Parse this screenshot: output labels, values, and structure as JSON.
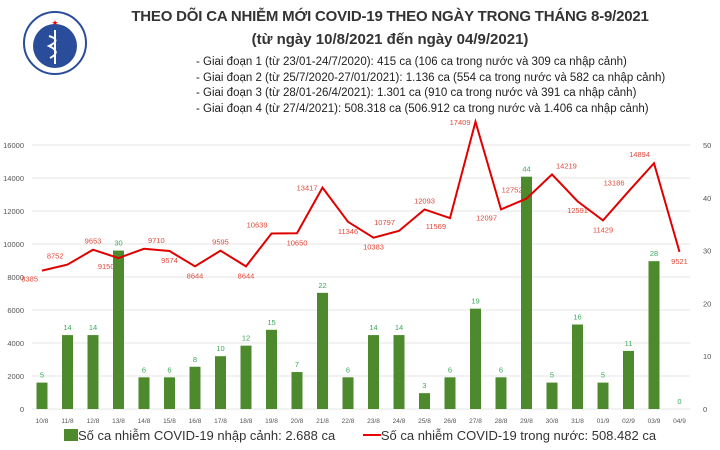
{
  "header": {
    "title": "THEO DÕI CA NHIỄM MỚI COVID-19 THEO NGÀY TRONG THÁNG 8-9/2021",
    "subtitle": "(từ ngày 10/8/2021 đến ngày 04/9/2021)",
    "notes": [
      "- Giai đoạn 1 (từ 23/01-24/7/2020): 415 ca (106 ca trong nước và 309 ca nhập cảnh)",
      "- Giai đoạn 2 (từ 25/7/2020-27/01/2021): 1.136 ca (554 ca trong nước và 582 ca nhập cảnh)",
      "- Giai đoạn 3 (từ 28/01-26/4/2021): 1.301 ca (910 ca trong nước và 391 ca nhập cảnh)",
      "- Giai đoạn 4 (từ 27/4/2021): 508.318 ca (506.912 ca trong nước và 1.406 ca nhập cảnh)"
    ],
    "logo_text": "BỘ Y TẾ · MINISTRY OF HEALTH"
  },
  "chart_data": {
    "type": "bar+line",
    "categories": [
      "10/8",
      "11/8",
      "12/8",
      "13/8",
      "14/8",
      "15/8",
      "16/8",
      "17/8",
      "18/8",
      "19/8",
      "20/8",
      "21/8",
      "22/8",
      "23/8",
      "24/8",
      "25/8",
      "26/8",
      "27/8",
      "28/8",
      "29/8",
      "30/8",
      "31/8",
      "01/9",
      "02/9",
      "03/9",
      "04/9"
    ],
    "series": [
      {
        "name": "Số ca nhiễm COVID-19 nhập cảnh: 2.688 ca",
        "type": "bar",
        "axis": "right",
        "color": "#4d8a2e",
        "label_color": "#3daa5a",
        "values": [
          5,
          14,
          14,
          30,
          6,
          6,
          8,
          10,
          12,
          15,
          7,
          22,
          6,
          14,
          14,
          3,
          6,
          19,
          6,
          44,
          5,
          16,
          5,
          11,
          28,
          0
        ]
      },
      {
        "name": "Số ca nhiễm COVID-19 trong nước: 508.482 ca",
        "type": "line",
        "axis": "left",
        "color": "#e00000",
        "label_color": "#e04a3a",
        "values": [
          8385,
          8752,
          9653,
          9150,
          9710,
          9574,
          8644,
          9595,
          8644,
          10639,
          10650,
          13417,
          11346,
          10383,
          10797,
          12093,
          11569,
          17409,
          12097,
          12752,
          14219,
          12591,
          11429,
          13186,
          14894,
          9521
        ]
      }
    ],
    "y_left": {
      "min": 0,
      "max": 16000,
      "ticks": [
        0,
        2000,
        4000,
        6000,
        8000,
        10000,
        12000,
        14000,
        16000
      ]
    },
    "y_right": {
      "min": 0,
      "max": 50,
      "ticks": [
        0,
        10,
        20,
        30,
        40,
        50
      ]
    },
    "grid": true,
    "legend_position": "bottom"
  }
}
